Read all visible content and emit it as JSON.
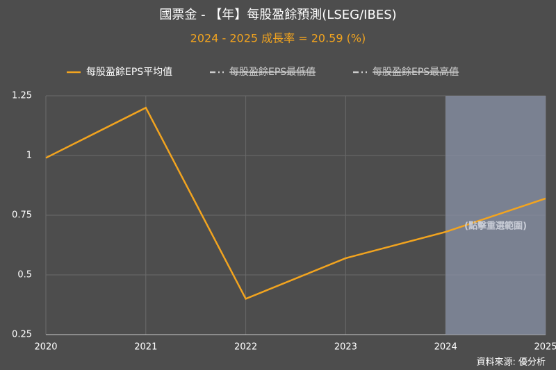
{
  "chart_data": {
    "type": "line",
    "title": "國票金 - 【年】每股盈餘預測(LSEG/IBES)",
    "subtitle": "2024 - 2025 成長率 = 20.59 (%)",
    "x": [
      2020,
      2021,
      2022,
      2023,
      2024,
      2025
    ],
    "series": [
      {
        "name": "每股盈餘EPS平均值",
        "color": "#f2a41f",
        "visible": true,
        "values": [
          0.99,
          1.2,
          0.4,
          0.57,
          0.68,
          0.82
        ]
      },
      {
        "name": "每股盈餘EPS最低值",
        "color": "#cccccc",
        "visible": false
      },
      {
        "name": "每股盈餘EPS最高值",
        "color": "#cccccc",
        "visible": false
      }
    ],
    "xlim": [
      2020,
      2025
    ],
    "xticks": [
      2020,
      2021,
      2022,
      2023,
      2024,
      2025
    ],
    "ylim": [
      0.25,
      1.25
    ],
    "yticks": [
      0.25,
      0.5,
      0.75,
      1,
      1.25
    ],
    "grid": true,
    "highlight": {
      "from": 2024,
      "to": 2025,
      "label": "(點擊重選範圍)"
    },
    "source": "資料來源: 優分析"
  }
}
